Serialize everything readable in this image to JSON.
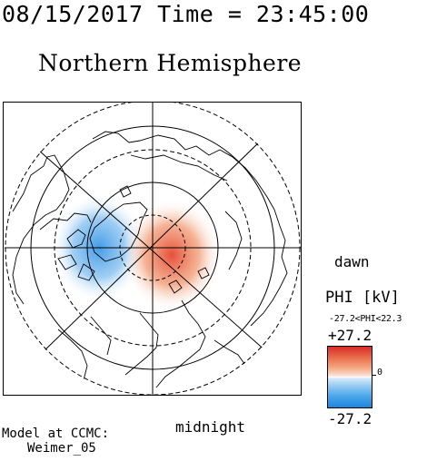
{
  "header": {
    "title": "08/15/2017 Time = 23:45:00",
    "hemisphere": "Northern Hemisphere"
  },
  "map": {
    "projection": "polar",
    "center": "north pole",
    "labels": {
      "dawn": "dawn",
      "midnight": "midnight"
    },
    "cells": {
      "negative_cell_color": "#2f8fe0",
      "positive_cell_color": "#e0472f"
    }
  },
  "colorbar": {
    "title": "PHI [kV]",
    "range_text": "-27.2<PHI<22.3",
    "max_label": "+27.2",
    "mid_label": "0",
    "min_label": "-27.2",
    "colors": {
      "top": "#d92b2b",
      "middle": "#ffffff",
      "bottom": "#1f86dd"
    }
  },
  "footer": {
    "model_line1": "Model at CCMC:",
    "model_line2": "Weimer_05"
  }
}
